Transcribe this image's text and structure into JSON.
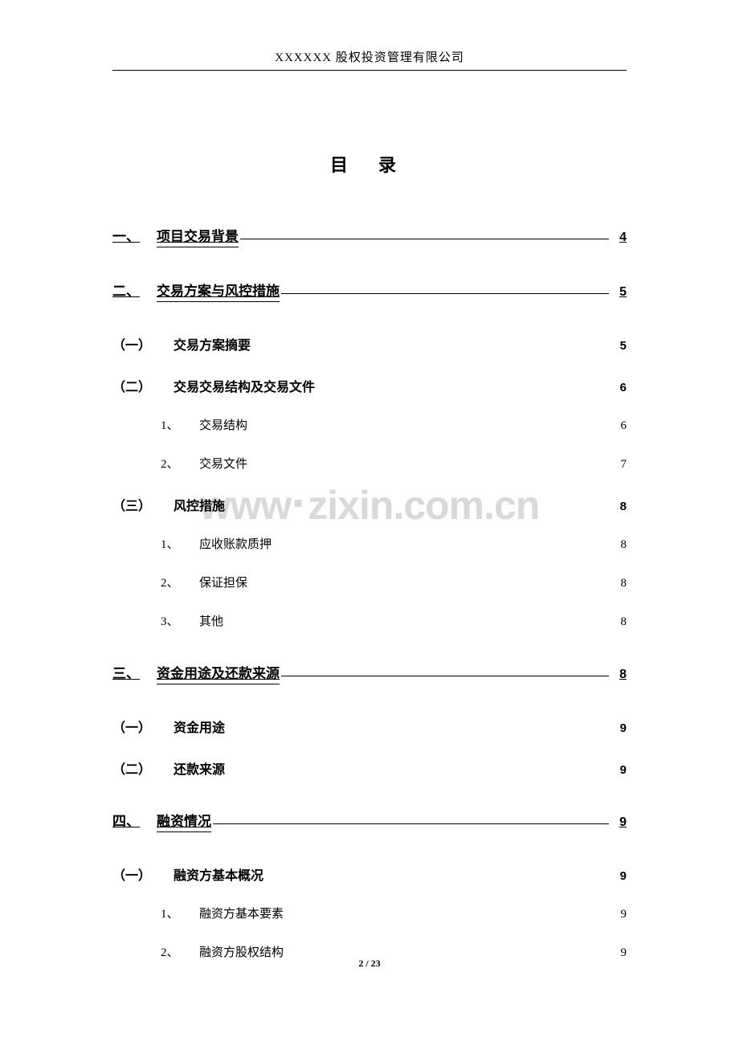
{
  "header": "XXXXXX 股权投资管理有限公司",
  "toc_title": "目 录",
  "watermark_text": "www.zixin.com.cn",
  "page_footer": "2 / 23",
  "colors": {
    "text": "#000000",
    "watermark": "#d9d9d9",
    "background": "#ffffff"
  },
  "entries": [
    {
      "level": 1,
      "num": "一、",
      "label": "项目交易背景",
      "page": "4"
    },
    {
      "level": 1,
      "num": "二、",
      "label": "交易方案与风控措施",
      "page": "5"
    },
    {
      "level": 2,
      "num": "（一）",
      "label": "交易方案摘要",
      "page": "5"
    },
    {
      "level": 2,
      "num": "（二）",
      "label": "交易交易结构及交易文件",
      "page": "6"
    },
    {
      "level": 3,
      "num": "1、",
      "label": "交易结构",
      "page": "6"
    },
    {
      "level": 3,
      "num": "2、",
      "label": "交易文件",
      "page": "7"
    },
    {
      "level": 2,
      "num": "（三）",
      "label": "风控措施",
      "page": "8"
    },
    {
      "level": 3,
      "num": "1、",
      "label": "应收账款质押",
      "page": "8"
    },
    {
      "level": 3,
      "num": "2、",
      "label": "保证担保",
      "page": "8"
    },
    {
      "level": 3,
      "num": "3、",
      "label": "其他",
      "page": "8"
    },
    {
      "level": 1,
      "num": "三、",
      "label": "资金用途及还款来源",
      "page": "8"
    },
    {
      "level": 2,
      "num": "（一）",
      "label": "资金用途",
      "page": "9"
    },
    {
      "level": 2,
      "num": "（二）",
      "label": "还款来源",
      "page": "9"
    },
    {
      "level": 1,
      "num": "四、",
      "label": "融资情况",
      "page": "9"
    },
    {
      "level": 2,
      "num": "（一）",
      "label": "融资方基本概况",
      "page": "9"
    },
    {
      "level": 3,
      "num": "1、",
      "label": "融资方基本要素",
      "page": "9"
    },
    {
      "level": 3,
      "num": "2、",
      "label": "融资方股权结构",
      "page": "9"
    }
  ]
}
